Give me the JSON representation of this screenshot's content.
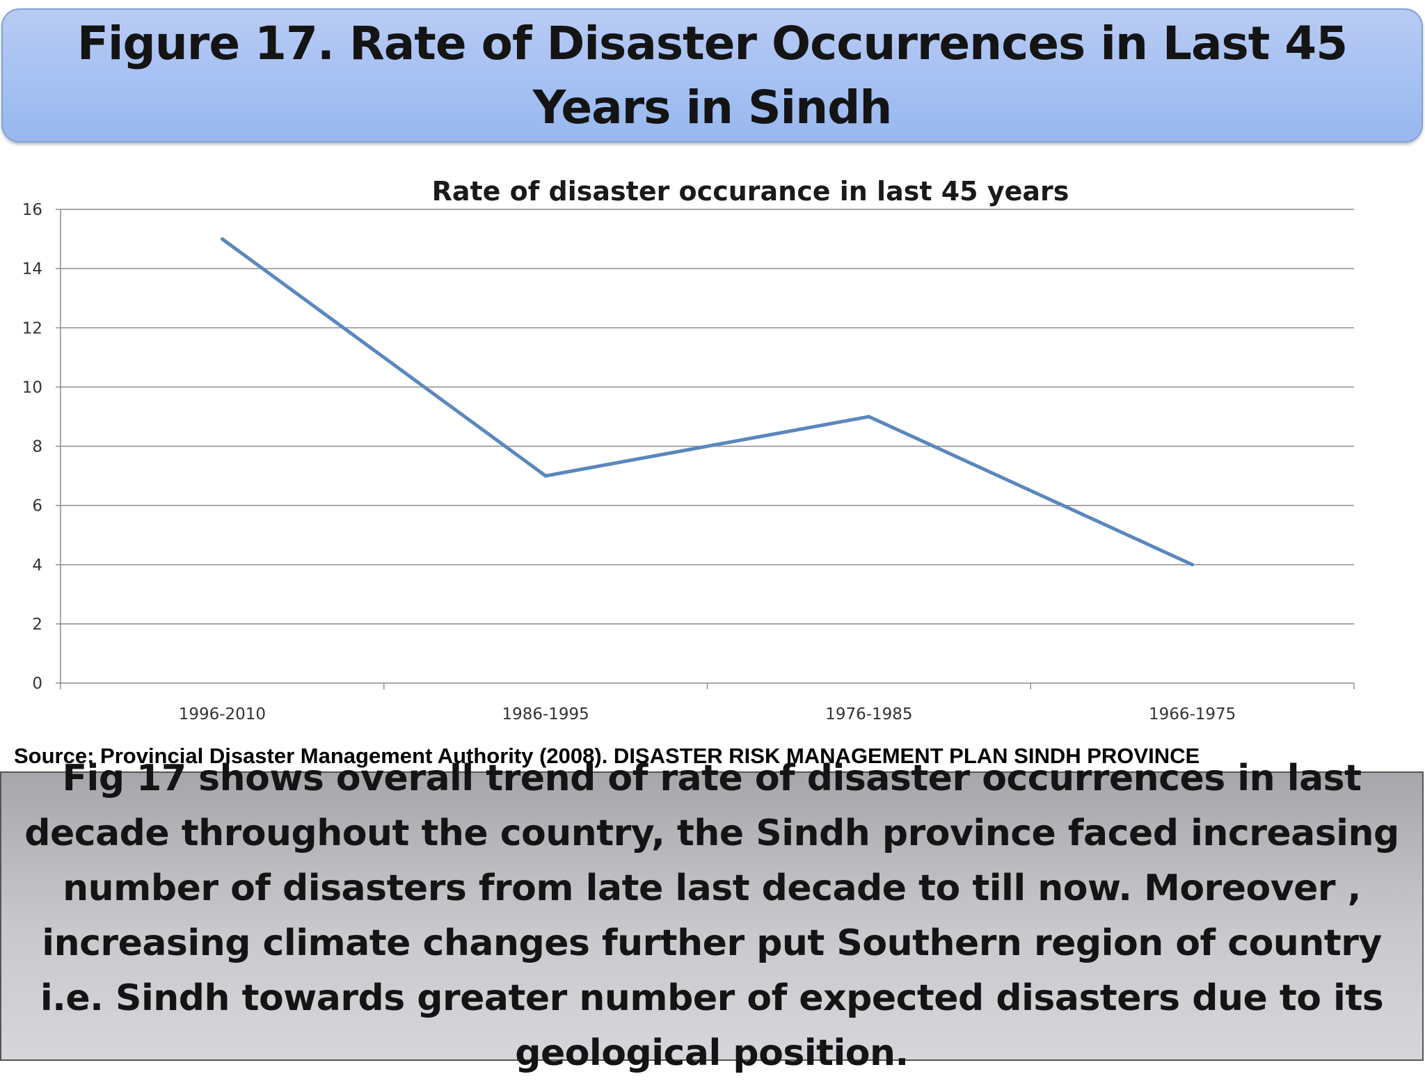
{
  "slide": {
    "title": "Figure 17. Rate of Disaster Occurrences in Last 45 Years in Sindh",
    "source": "Source: Provincial Disaster Management Authority  (2008). DISASTER RISK MANAGEMENT PLAN SINDH PROVINCE",
    "note": "Fig 17 shows overall trend of rate of disaster occurrences in last decade throughout the country, the Sindh province faced increasing number of disasters from late last decade to till now. Moreover , increasing climate changes further put Southern region of country i.e. Sindh towards greater number of expected disasters due to its geological position."
  },
  "chart_data": {
    "type": "line",
    "title": "Rate of disaster occurance in last 45 years",
    "xlabel": "",
    "ylabel": "",
    "categories": [
      "1996-2010",
      "1986-1995",
      "1976-1985",
      "1966-1975"
    ],
    "series": [
      {
        "values": [
          15,
          7,
          9,
          4
        ],
        "color": "#5b87bd"
      }
    ],
    "ylim": [
      0,
      16
    ],
    "yticks": [
      0,
      2,
      4,
      6,
      8,
      10,
      12,
      14,
      16
    ],
    "grid": true,
    "legend": "none"
  }
}
